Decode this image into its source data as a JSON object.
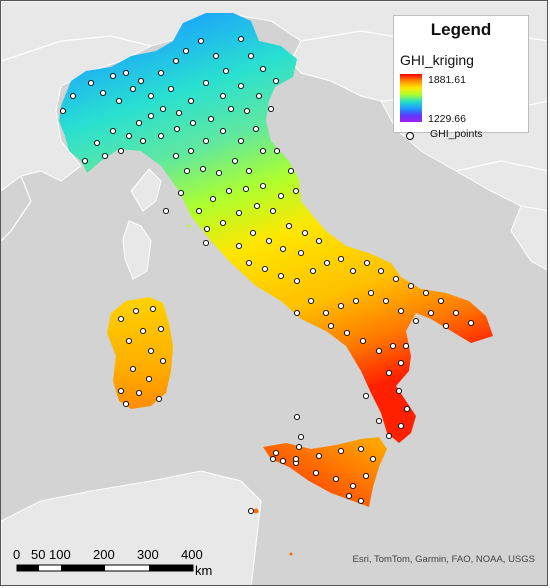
{
  "legend": {
    "title": "Legend",
    "layer_name": "GHI_kriging",
    "ramp_max": "1881.61",
    "ramp_min": "1229.66",
    "points_label": "GHI_points",
    "ramp_colors": [
      "#ff0000",
      "#ff8c00",
      "#ffe600",
      "#adff2f",
      "#29e0c0",
      "#1aa0ff",
      "#5a3cff",
      "#a020f0"
    ]
  },
  "scalebar": {
    "ticks": [
      "0",
      "50",
      "100",
      "200",
      "300",
      "400"
    ],
    "unit": "km"
  },
  "attribution": "Esri, TomTom, Garmin, FAO, NOAA, USGS",
  "colors": {
    "sea": "#d3d3d3",
    "land": "#e8e8e8",
    "borders": "#ffffff"
  }
}
